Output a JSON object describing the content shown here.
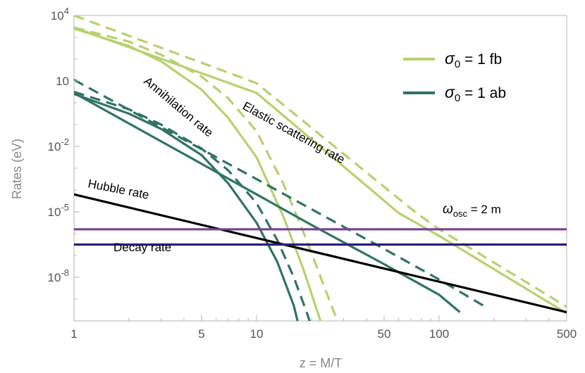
{
  "chart_data": {
    "type": "line",
    "xscale": "log",
    "yscale": "log",
    "xlabel": "z = M/T",
    "ylabel": "Rates (eV)",
    "xlim": [
      1,
      500
    ],
    "ylim_log10": [
      -10,
      4
    ],
    "x_ticks": [
      {
        "value": 1,
        "label": "1"
      },
      {
        "value": 5,
        "label": "5"
      },
      {
        "value": 10,
        "label": "10"
      },
      {
        "value": 50,
        "label": "50"
      },
      {
        "value": 100,
        "label": "100"
      },
      {
        "value": 500,
        "label": "500"
      }
    ],
    "y_ticks": [
      {
        "log10": 4,
        "base": "10",
        "exp": "4"
      },
      {
        "log10": 1,
        "base": "10",
        "exp": ""
      },
      {
        "log10": -2,
        "base": "10",
        "exp": "-2"
      },
      {
        "log10": -5,
        "base": "10",
        "exp": "-5"
      },
      {
        "log10": -8,
        "base": "10",
        "exp": "-8"
      }
    ],
    "legend": {
      "position": "top-right",
      "entries": [
        {
          "sigma": "σ",
          "sub": "0",
          "text": " = 1 fb",
          "color": "#b5d26e"
        },
        {
          "sigma": "σ",
          "sub": "0",
          "text": " = 1 ab",
          "color": "#2e7464"
        }
      ]
    },
    "series": [
      {
        "name": "Elastic scattering rate, σ0 = 1 fb (solid)",
        "color": "#b5d26e",
        "dash": false,
        "points": [
          [
            1,
            3.45
          ],
          [
            10,
            0.45
          ],
          [
            60,
            -5.05
          ],
          [
            100,
            -6.1
          ],
          [
            500,
            -9.65
          ]
        ]
      },
      {
        "name": "Elastic scattering rate, σ0 = 1 fb (dashed)",
        "color": "#b5d26e",
        "dash": true,
        "points": [
          [
            1,
            4.0
          ],
          [
            10,
            0.9
          ],
          [
            75,
            -5.05
          ],
          [
            100,
            -5.8
          ],
          [
            500,
            -9.35
          ]
        ]
      },
      {
        "name": "Annihilation rate, σ0 = 1 fb (solid)",
        "color": "#b5d26e",
        "dash": false,
        "points": [
          [
            1,
            3.4
          ],
          [
            2,
            2.6
          ],
          [
            3,
            1.9
          ],
          [
            5,
            0.6
          ],
          [
            7,
            -0.7
          ],
          [
            10,
            -2.5
          ],
          [
            14,
            -5.2
          ],
          [
            18,
            -7.6
          ],
          [
            22,
            -9.8
          ],
          [
            23,
            -10.3
          ]
        ]
      },
      {
        "name": "Annihilation rate, σ0 = 1 fb (dashed)",
        "color": "#b5d26e",
        "dash": true,
        "points": [
          [
            1,
            3.45
          ],
          [
            2,
            2.8
          ],
          [
            3,
            2.2
          ],
          [
            5,
            1.2
          ],
          [
            7,
            0.2
          ],
          [
            10,
            -1.3
          ],
          [
            14,
            -3.7
          ],
          [
            18,
            -5.9
          ],
          [
            22,
            -7.8
          ],
          [
            26,
            -9.4
          ],
          [
            29,
            -10.4
          ]
        ]
      },
      {
        "name": "Elastic scattering rate, σ0 = 1 ab (solid)",
        "color": "#2e7464",
        "dash": false,
        "points": [
          [
            1,
            0.45
          ],
          [
            10,
            -4.2
          ],
          [
            20,
            -5.6
          ],
          [
            50,
            -7.4
          ],
          [
            100,
            -8.8
          ],
          [
            130,
            -9.6
          ]
        ]
      },
      {
        "name": "Elastic scattering rate, σ0 = 1 ab (dashed)",
        "color": "#2e7464",
        "dash": true,
        "points": [
          [
            1,
            1.05
          ],
          [
            10,
            -3.5
          ],
          [
            50,
            -6.7
          ],
          [
            100,
            -8.1
          ],
          [
            175,
            -9.3
          ]
        ]
      },
      {
        "name": "Annihilation rate, σ0 = 1 ab (solid)",
        "color": "#2e7464",
        "dash": false,
        "points": [
          [
            1,
            0.4
          ],
          [
            2,
            -0.5
          ],
          [
            3,
            -1.2
          ],
          [
            5,
            -2.4
          ],
          [
            7,
            -3.7
          ],
          [
            10,
            -5.5
          ],
          [
            13,
            -7.3
          ],
          [
            16,
            -9.3
          ],
          [
            17,
            -10.2
          ]
        ]
      },
      {
        "name": "Annihilation rate, σ0 = 1 ab (dashed)",
        "color": "#2e7464",
        "dash": true,
        "points": [
          [
            1,
            0.5
          ],
          [
            2,
            -0.3
          ],
          [
            3,
            -1.0
          ],
          [
            5,
            -2.1
          ],
          [
            7,
            -3.1
          ],
          [
            10,
            -4.6
          ],
          [
            13,
            -6.3
          ],
          [
            16,
            -8.0
          ],
          [
            19,
            -9.7
          ],
          [
            20,
            -10.3
          ]
        ]
      },
      {
        "name": "Hubble rate",
        "color": "#000000",
        "dash": false,
        "points": [
          [
            1,
            -4.2
          ],
          [
            500,
            -9.6
          ]
        ]
      },
      {
        "name": "ω_osc = 2 m",
        "color": "#7b3f99",
        "dash": false,
        "points": [
          [
            1,
            -5.8
          ],
          [
            500,
            -5.8
          ]
        ]
      },
      {
        "name": "Decay rate",
        "color": "#2a1f7a",
        "dash": false,
        "points": [
          [
            1,
            -6.5
          ],
          [
            500,
            -6.5
          ]
        ]
      }
    ],
    "annotations": {
      "annihilation": "Annihilation rate",
      "elastic": "Elastic scattering rate",
      "hubble": "Hubble rate",
      "decay": "Decay rate",
      "omega_symbol": "ω",
      "omega_sub": "osc",
      "omega_text": " = 2 m"
    }
  }
}
